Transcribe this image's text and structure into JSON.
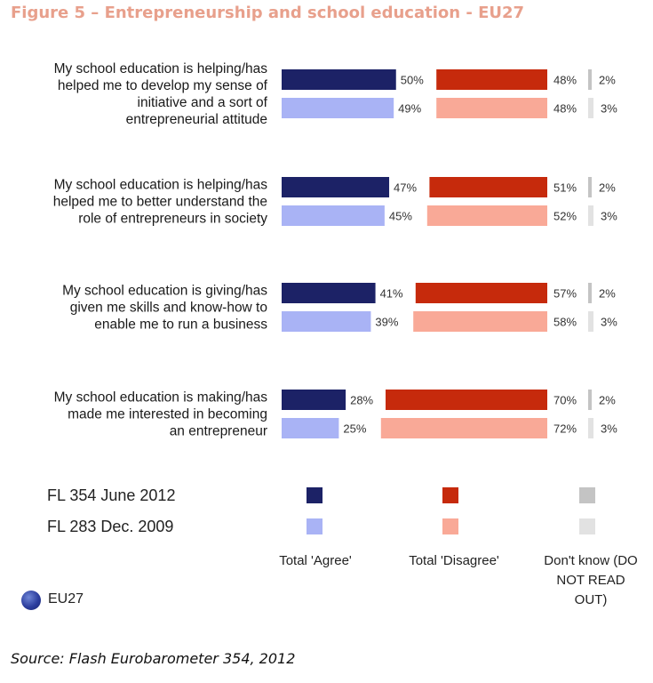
{
  "figure_title": "Figure 5 – Entrepreneurship and school education - EU27",
  "region_label": "EU27",
  "source": "Source: Flash Eurobarometer 354, 2012",
  "colors": {
    "agree_2012": "#1c2266",
    "agree_2009": "#a9b3f5",
    "disagree_2012": "#c62a0c",
    "disagree_2009": "#f9a997",
    "dk_2012": "#c4c4c4",
    "dk_2009": "#e2e2e2",
    "title": "#e8a08c"
  },
  "chart_data": {
    "type": "bar",
    "orientation": "horizontal",
    "stacking": "diverging",
    "questions": [
      [
        "My school education is helping/has",
        "helped me to develop my sense of",
        "initiative and a sort of",
        "entrepreneurial attitude"
      ],
      [
        "My school education is helping/has",
        "helped me to better understand the",
        "role of entrepreneurs in society"
      ],
      [
        "My school education is giving/has",
        "given me skills and know-how to",
        "enable me to run a business"
      ],
      [
        "My school education is making/has",
        "made me interested in becoming",
        "an entrepreneur"
      ]
    ],
    "waves": [
      "FL 354 June 2012",
      "FL 283 Dec. 2009"
    ],
    "answer_categories": [
      "Total 'Agree'",
      "Total 'Disagree'",
      "Don't know (DO NOT READ OUT)"
    ],
    "answer_category_lines": [
      [
        "Total 'Agree'"
      ],
      [
        "Total 'Disagree'"
      ],
      [
        "Don't know (DO",
        "NOT READ",
        "OUT)"
      ]
    ],
    "series": [
      {
        "name": "FL 354 June 2012",
        "agree": [
          50,
          47,
          41,
          28
        ],
        "disagree": [
          48,
          51,
          57,
          70
        ],
        "dont_know": [
          2,
          2,
          2,
          2
        ]
      },
      {
        "name": "FL 283 Dec. 2009",
        "agree": [
          49,
          45,
          39,
          25
        ],
        "disagree": [
          48,
          52,
          58,
          72
        ],
        "dont_know": [
          3,
          3,
          3,
          3
        ]
      }
    ],
    "value_suffix": "%"
  }
}
